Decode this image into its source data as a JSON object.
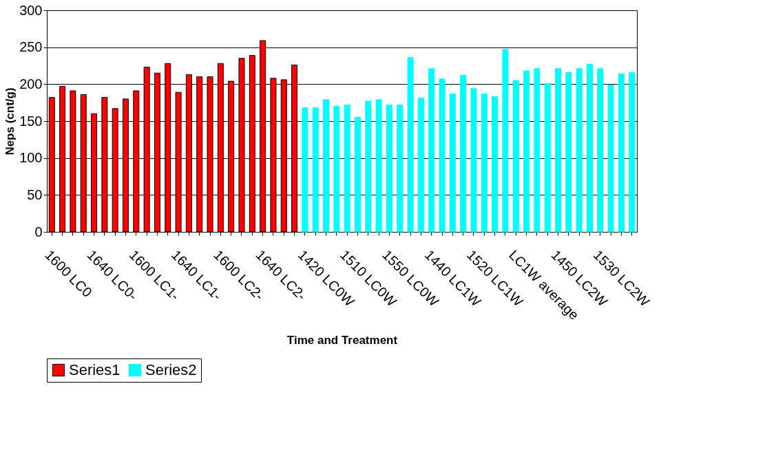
{
  "chart_data": {
    "type": "bar",
    "xlabel": "Time and Treatment",
    "ylabel": "Neps (cnt/g)",
    "categories": [
      "1600 LC0",
      null,
      null,
      null,
      "1640 LC0-",
      null,
      null,
      null,
      "1600 LC1-",
      null,
      null,
      null,
      "1640 LC1-",
      null,
      null,
      null,
      "1600 LC2-",
      null,
      null,
      null,
      "1640 LC2-",
      null,
      null,
      null,
      "1420 LC0W",
      null,
      null,
      null,
      "1510 LC0W",
      null,
      null,
      null,
      "1550 LC0W",
      null,
      null,
      null,
      "1440 LC1W",
      null,
      null,
      null,
      "1520 LC1W",
      null,
      null,
      null,
      "LC1W average",
      null,
      null,
      null,
      "1450 LC2W",
      null,
      null,
      null,
      "1530 LC2W",
      null,
      null,
      null
    ],
    "series": [
      {
        "name": "Series1",
        "color": "#ff0000",
        "values": [
          182,
          197,
          191,
          186,
          160,
          182,
          167,
          180,
          191,
          223,
          215,
          228,
          189,
          213,
          210,
          210,
          228,
          204,
          235,
          239,
          259,
          208,
          206,
          226,
          null,
          null,
          null,
          null,
          null,
          null,
          null,
          null,
          null,
          null,
          null,
          null,
          null,
          null,
          null,
          null,
          null,
          null,
          null,
          null,
          null,
          null,
          null,
          null,
          null,
          null,
          null,
          null,
          null,
          null,
          null,
          null
        ]
      },
      {
        "name": "Series2",
        "color": "#00ffff",
        "values": [
          null,
          null,
          null,
          null,
          null,
          null,
          null,
          null,
          null,
          null,
          null,
          null,
          null,
          null,
          null,
          null,
          null,
          null,
          null,
          null,
          null,
          null,
          null,
          null,
          168,
          168,
          179,
          170,
          172,
          155,
          177,
          179,
          172,
          172,
          236,
          181,
          221,
          207,
          187,
          212,
          194,
          187,
          183,
          247,
          205,
          218,
          221,
          201,
          221,
          216,
          221,
          227,
          221,
          199,
          214,
          216
        ]
      }
    ],
    "ylim": [
      0,
      300
    ],
    "yticks": [
      0,
      50,
      100,
      150,
      200,
      250,
      300
    ],
    "grid": "y",
    "legend": "bottom"
  }
}
